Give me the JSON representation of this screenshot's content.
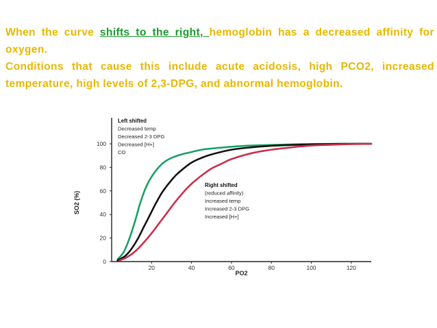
{
  "slide": {
    "paragraph1_before": "When the curve ",
    "paragraph1_highlight": "shifts to the right, ",
    "paragraph1_after": "hemoglobin has a decreased affinity for oxygen.",
    "paragraph2": "Conditions that cause this include acute acidosis, high PCO2, increased temperature, high levels of 2,3-DPG, and abnormal hemoglobin.",
    "text_color": "#e8b800",
    "highlight_color": "#1c9a2e"
  },
  "chart_data": {
    "type": "line",
    "xlabel": "PO2",
    "ylabel": "SO2 (%)",
    "xlim": [
      0,
      130
    ],
    "ylim": [
      0,
      100
    ],
    "x_ticks": [
      "20",
      "40",
      "60",
      "80",
      "100",
      "120"
    ],
    "y_ticks": [
      "0",
      "20",
      "40",
      "60",
      "80",
      "100"
    ],
    "grid": false,
    "series": [
      {
        "key": "left",
        "color": "#1aa067",
        "x": [
          3,
          6,
          9,
          12,
          14,
          16,
          18,
          20,
          23,
          26,
          30,
          35,
          40,
          45,
          50,
          60,
          70,
          80,
          90,
          100,
          110,
          120,
          130
        ],
        "y": [
          2,
          8,
          20,
          36,
          48,
          58,
          66,
          72,
          79,
          84,
          88,
          91,
          93,
          95,
          96,
          97.5,
          98.5,
          99,
          99.5,
          99.8,
          100,
          100,
          100
        ]
      },
      {
        "key": "normal",
        "color": "#111111",
        "x": [
          3,
          7,
          10,
          13,
          16,
          19,
          22,
          25,
          28,
          32,
          36,
          40,
          45,
          50,
          60,
          70,
          80,
          90,
          100,
          110,
          120,
          130
        ],
        "y": [
          1,
          5,
          11,
          19,
          29,
          39,
          49,
          58,
          65,
          73,
          79,
          84,
          88,
          91,
          95,
          97,
          98.3,
          99,
          99.5,
          99.8,
          100,
          100
        ]
      },
      {
        "key": "right",
        "color": "#c8304a",
        "x": [
          4,
          8,
          12,
          16,
          20,
          24,
          28,
          32,
          36,
          40,
          45,
          50,
          55,
          60,
          70,
          80,
          90,
          100,
          110,
          120,
          130
        ],
        "y": [
          1,
          4,
          9,
          16,
          24,
          33,
          42,
          51,
          59,
          66,
          73,
          79,
          83,
          87,
          92,
          95,
          97,
          98.5,
          99.2,
          99.7,
          100
        ]
      }
    ],
    "left_legend": {
      "heading": "Left shifted",
      "items": [
        "Decreased temp",
        "Decreased 2-3 DPG",
        "Decreased [H+]",
        "CO"
      ]
    },
    "right_legend": {
      "heading": "Right shifted",
      "items": [
        "(reduced affinity)",
        "Increased temp",
        "Increased 2-3 DPG",
        "Increased [H+]"
      ]
    }
  }
}
